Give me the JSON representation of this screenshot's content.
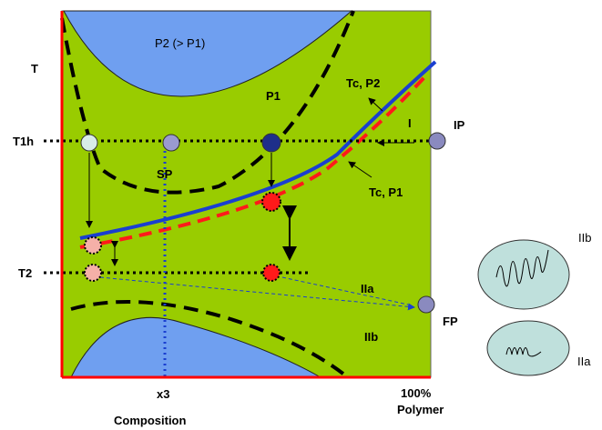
{
  "diagram": {
    "y_axis_label": "T",
    "x_axis_label": "Composition",
    "x_tick": "x3",
    "x_end": [
      "100%",
      "Polymer"
    ],
    "levels": {
      "t1h": "T1h",
      "t2": "T2"
    },
    "regions": {
      "upper": "P2 (> P1)",
      "p1": "P1",
      "sp": "SP",
      "iia": "IIa",
      "iib": "IIb",
      "i": "I"
    },
    "curves": {
      "tc_p2": "Tc, P2",
      "tc_p1": "Tc, P1"
    },
    "points": {
      "ip": "IP",
      "fp": "FP"
    },
    "insets": {
      "iib": "IIb",
      "iia": "IIa"
    }
  }
}
